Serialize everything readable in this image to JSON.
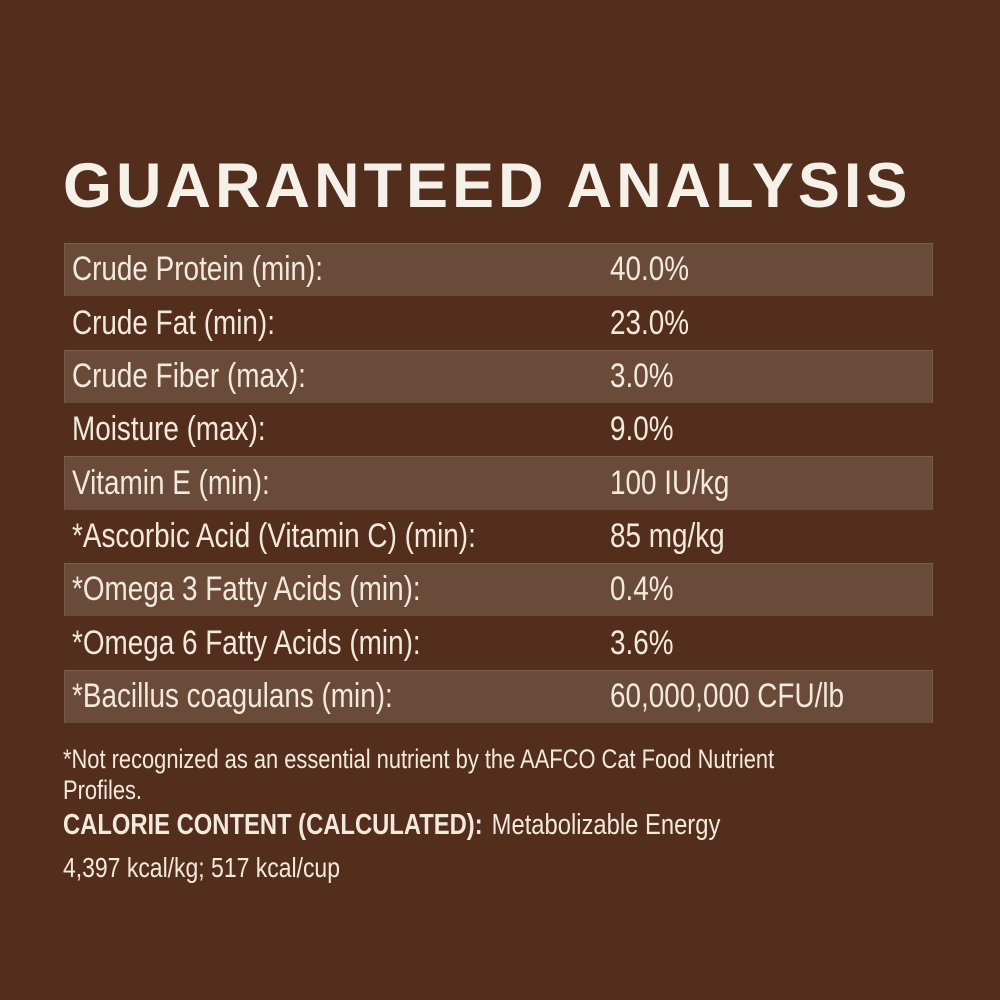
{
  "title": "GUARANTEED ANALYSIS",
  "table": {
    "rows": [
      {
        "label": "Crude Protein (min):",
        "value": "40.0%"
      },
      {
        "label": "Crude Fat (min):",
        "value": "23.0%"
      },
      {
        "label": "Crude Fiber (max):",
        "value": "3.0%"
      },
      {
        "label": "Moisture (max):",
        "value": "9.0%"
      },
      {
        "label": "Vitamin E (min):",
        "value": "100 IU/kg"
      },
      {
        "label": "*Ascorbic Acid (Vitamin C) (min):",
        "value": "85 mg/kg"
      },
      {
        "label": "*Omega 3 Fatty Acids (min):",
        "value": "0.4%"
      },
      {
        "label": "*Omega 6 Fatty Acids (min):",
        "value": "3.6%"
      },
      {
        "label": "*Bacillus coagulans (min):",
        "value": "60,000,000 CFU/lb"
      }
    ]
  },
  "footnote": "*Not recognized as an essential nutrient by the AAFCO Cat Food Nutrient Profiles.",
  "calorie": {
    "heading": "CALORIE CONTENT (CALCULATED):",
    "subtitle": "Metabolizable Energy",
    "values": "4,397 kcal/kg; 517 kcal/cup"
  },
  "colors": {
    "background": "#542E1C",
    "row_stripe": "#6A4B3A",
    "text": "#F1EADC",
    "title": "#F6F1E8"
  }
}
